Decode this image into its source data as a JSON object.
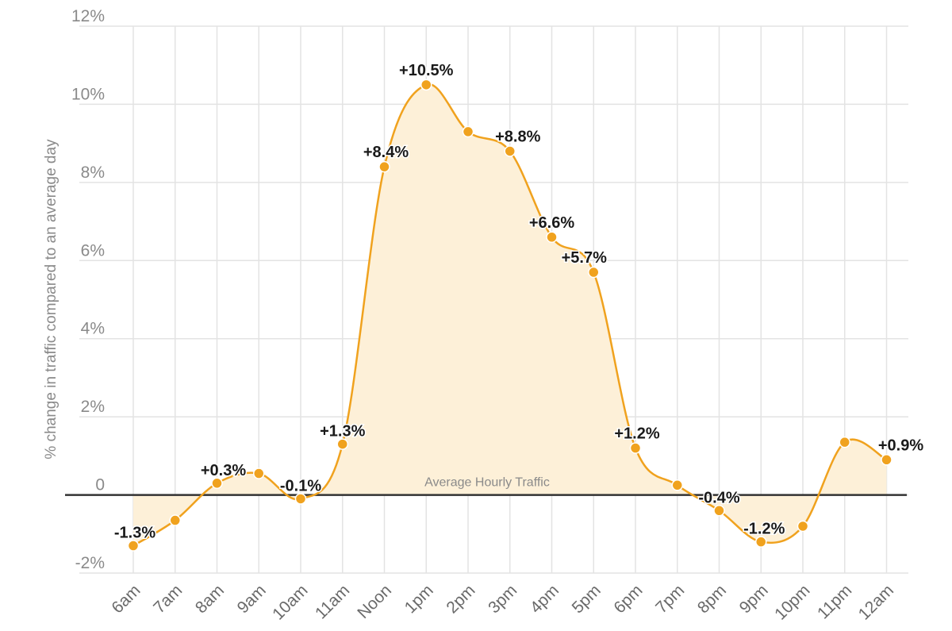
{
  "chart_data": {
    "type": "area",
    "ylabel": "% change in traffic compared to an average day",
    "baseline_label": "Average Hourly Traffic",
    "ylim": [
      -2,
      12
    ],
    "y_ticks": [
      {
        "value": 12,
        "label": "12%"
      },
      {
        "value": 10,
        "label": "10%"
      },
      {
        "value": 8,
        "label": "8%"
      },
      {
        "value": 6,
        "label": "6%"
      },
      {
        "value": 4,
        "label": "4%"
      },
      {
        "value": 2,
        "label": "2%"
      },
      {
        "value": 0,
        "label": "0"
      },
      {
        "value": -2,
        "label": "-2%"
      }
    ],
    "categories": [
      "6am",
      "7am",
      "8am",
      "9am",
      "10am",
      "11am",
      "Noon",
      "1pm",
      "2pm",
      "3pm",
      "4pm",
      "5pm",
      "6pm",
      "7pm",
      "8pm",
      "9pm",
      "10pm",
      "11pm",
      "12am"
    ],
    "values": [
      -1.3,
      -0.65,
      0.3,
      0.55,
      -0.1,
      1.3,
      8.4,
      10.5,
      9.3,
      8.8,
      6.6,
      5.7,
      1.2,
      0.25,
      -0.4,
      -1.2,
      -0.8,
      1.35,
      0.9
    ],
    "data_labels": [
      "-1.3%",
      "",
      "+0.3%",
      "",
      "-0.1%",
      "+1.3%",
      "+8.4%",
      "+10.5%",
      "",
      "+8.8%",
      "+6.6%",
      "+5.7%",
      "+1.2%",
      "",
      "-0.4%",
      "-1.2%",
      "",
      "",
      "+0.9%"
    ],
    "grid": true,
    "colors": {
      "line": "#f0a21e",
      "fill": "#fdf0d8",
      "point": "#f0a21e",
      "baseline": "#333333",
      "grid": "#e3e3e3"
    }
  }
}
